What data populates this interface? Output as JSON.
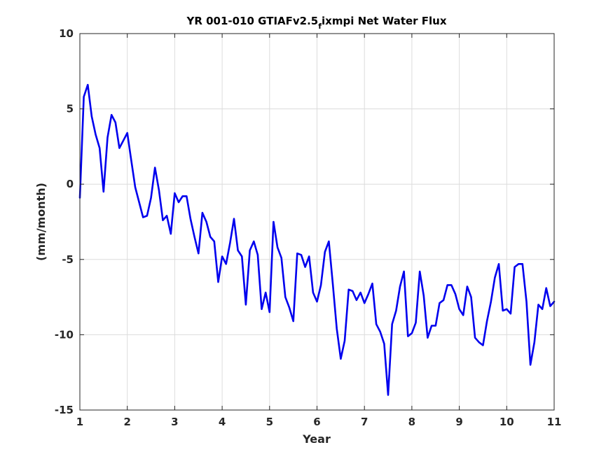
{
  "chart_data": {
    "type": "line",
    "title": "YR 001-010 GTIAFv2.5",
    "title_subscript": "f",
    "title_rest": "ixmpi Net Water Flux",
    "xlabel": "Year",
    "ylabel": "(mm/month)",
    "xlim": [
      1,
      11
    ],
    "ylim": [
      -15,
      10
    ],
    "xticks": [
      1,
      2,
      3,
      4,
      5,
      6,
      7,
      8,
      9,
      10,
      11
    ],
    "yticks": [
      -15,
      -10,
      -5,
      0,
      5,
      10
    ],
    "ytick_labels": [
      "-15",
      "-10",
      "-5",
      "0",
      "5",
      "10"
    ],
    "grid": true,
    "series": [
      {
        "color": "#0000ee",
        "x": [
          1.0,
          1.083,
          1.167,
          1.25,
          1.333,
          1.417,
          1.5,
          1.583,
          1.667,
          1.75,
          1.833,
          1.917,
          2.0,
          2.083,
          2.167,
          2.25,
          2.333,
          2.417,
          2.5,
          2.583,
          2.667,
          2.75,
          2.833,
          2.917,
          3.0,
          3.083,
          3.167,
          3.25,
          3.333,
          3.417,
          3.5,
          3.583,
          3.667,
          3.75,
          3.833,
          3.917,
          4.0,
          4.083,
          4.167,
          4.25,
          4.333,
          4.417,
          4.5,
          4.583,
          4.667,
          4.75,
          4.833,
          4.917,
          5.0,
          5.083,
          5.167,
          5.25,
          5.333,
          5.417,
          5.5,
          5.583,
          5.667,
          5.75,
          5.833,
          5.917,
          6.0,
          6.083,
          6.167,
          6.25,
          6.333,
          6.417,
          6.5,
          6.583,
          6.667,
          6.75,
          6.833,
          6.917,
          7.0,
          7.083,
          7.167,
          7.25,
          7.333,
          7.417,
          7.5,
          7.583,
          7.667,
          7.75,
          7.833,
          7.917,
          8.0,
          8.083,
          8.167,
          8.25,
          8.333,
          8.417,
          8.5,
          8.583,
          8.667,
          8.75,
          8.833,
          8.917,
          9.0,
          9.083,
          9.167,
          9.25,
          9.333,
          9.417,
          9.5,
          9.583,
          9.667,
          9.75,
          9.833,
          9.917,
          10.0,
          10.083,
          10.167,
          10.25,
          10.333,
          10.417,
          10.5,
          10.583,
          10.667,
          10.75,
          10.833,
          10.917,
          11.0
        ],
        "y": [
          -0.9,
          5.8,
          6.6,
          4.5,
          3.3,
          2.4,
          -0.5,
          3.1,
          4.6,
          4.1,
          2.4,
          2.9,
          3.4,
          1.6,
          -0.2,
          -1.2,
          -2.2,
          -2.1,
          -0.9,
          1.1,
          -0.4,
          -2.4,
          -2.1,
          -3.3,
          -0.6,
          -1.2,
          -0.8,
          -0.8,
          -2.3,
          -3.5,
          -4.6,
          -1.9,
          -2.5,
          -3.5,
          -3.8,
          -6.5,
          -4.8,
          -5.3,
          -3.9,
          -2.3,
          -4.4,
          -4.8,
          -8.0,
          -4.4,
          -3.8,
          -4.7,
          -8.3,
          -7.2,
          -8.5,
          -2.5,
          -4.2,
          -4.9,
          -7.5,
          -8.2,
          -9.1,
          -4.6,
          -4.7,
          -5.5,
          -4.8,
          -7.2,
          -7.8,
          -6.7,
          -4.5,
          -3.8,
          -6.6,
          -9.6,
          -11.6,
          -10.4,
          -7.0,
          -7.1,
          -7.7,
          -7.2,
          -7.9,
          -7.3,
          -6.6,
          -9.3,
          -9.8,
          -10.6,
          -14.0,
          -9.3,
          -8.4,
          -6.8,
          -5.8,
          -10.1,
          -9.9,
          -9.2,
          -5.8,
          -7.4,
          -10.2,
          -9.4,
          -9.4,
          -7.9,
          -7.7,
          -6.7,
          -6.7,
          -7.3,
          -8.3,
          -8.7,
          -6.8,
          -7.5,
          -10.2,
          -10.5,
          -10.7,
          -9.1,
          -7.8,
          -6.2,
          -5.3,
          -8.4,
          -8.3,
          -8.6,
          -5.5,
          -5.3,
          -5.3,
          -7.8,
          -12.0,
          -10.5,
          -8.0,
          -8.3,
          -6.9,
          -8.1,
          -7.8
        ]
      }
    ]
  }
}
